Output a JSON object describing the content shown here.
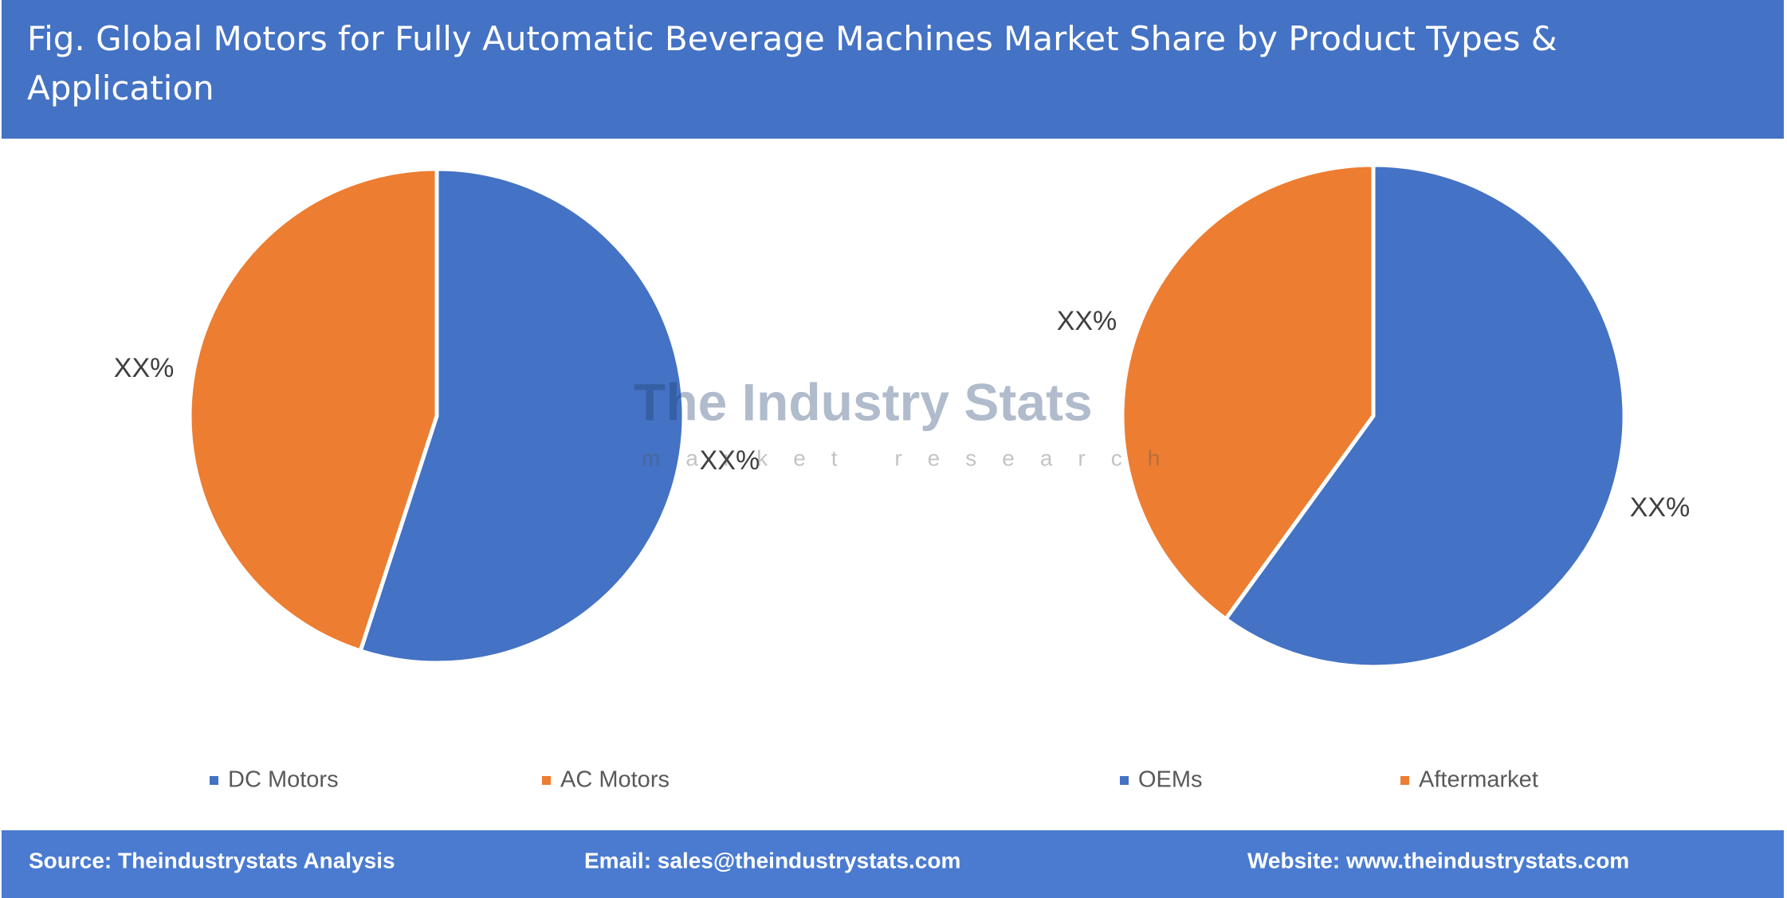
{
  "title": "Fig. Global Motors for Fully Automatic Beverage Machines Market Share by Product Types & Application",
  "watermark": {
    "name": "The Industry Stats",
    "tagline": "market research"
  },
  "footer": {
    "source": "Source: Theindustrystats Analysis",
    "email": "Email: sales@theindustrystats.com",
    "website": "Website: www.theindustrystats.com"
  },
  "chart_data": [
    {
      "type": "pie",
      "categories": [
        "DC Motors",
        "AC Motors"
      ],
      "values": [
        55,
        45
      ],
      "value_labels": [
        "XX%",
        "XX%"
      ],
      "colors": [
        "#4472c4",
        "#ed7d31"
      ]
    },
    {
      "type": "pie",
      "categories": [
        "OEMs",
        "Aftermarket"
      ],
      "values": [
        60,
        40
      ],
      "value_labels": [
        "XX%",
        "XX%"
      ],
      "colors": [
        "#4472c4",
        "#ed7d31"
      ]
    }
  ]
}
